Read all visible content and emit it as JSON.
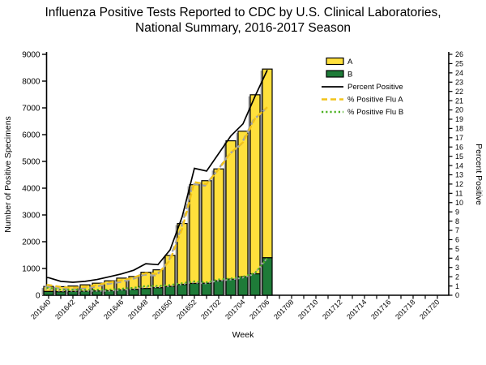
{
  "title": {
    "line1": "Influenza Positive Tests Reported to CDC by U.S. Clinical Laboratories,",
    "line2": "National Summary, 2016-2017 Season"
  },
  "chart_data": {
    "type": "combo",
    "subtype": "stacked-bar-with-lines",
    "title": "Influenza Positive Tests Reported to CDC by U.S. Clinical Laboratories, National Summary, 2016-2017 Season",
    "x_axis": {
      "label": "Week",
      "weeks": [
        "201640",
        "201641",
        "201642",
        "201643",
        "201644",
        "201645",
        "201646",
        "201647",
        "201648",
        "201649",
        "201650",
        "201651",
        "201652",
        "201701",
        "201702",
        "201703",
        "201704",
        "201705",
        "201706",
        "201707",
        "201708",
        "201709",
        "201710",
        "201711",
        "201712",
        "201713",
        "201714",
        "201715",
        "201716",
        "201717",
        "201718",
        "201719",
        "201720"
      ],
      "label_every": 2
    },
    "left_axis": {
      "label": "Number of Positive Specimens",
      "min": 0,
      "max": 9000,
      "tick_step": 1000
    },
    "right_axis": {
      "label": "Percent Positive",
      "min": 0,
      "max": 26,
      "tick_step": 1
    },
    "bars": {
      "weeks": [
        "201640",
        "201641",
        "201642",
        "201643",
        "201644",
        "201645",
        "201646",
        "201647",
        "201648",
        "201649",
        "201650",
        "201651",
        "201652",
        "201701",
        "201702",
        "201703",
        "201704",
        "201705",
        "201706"
      ],
      "flu_a": [
        190,
        190,
        205,
        240,
        290,
        370,
        440,
        480,
        610,
        670,
        1160,
        2280,
        3690,
        3830,
        4180,
        5170,
        5440,
        6690,
        7050
      ],
      "flu_b": [
        140,
        130,
        140,
        150,
        160,
        170,
        200,
        220,
        250,
        280,
        330,
        400,
        440,
        450,
        540,
        600,
        690,
        800,
        1400
      ]
    },
    "lines": {
      "percent_positive": [
        1.9,
        1.5,
        1.4,
        1.5,
        1.7,
        2.0,
        2.3,
        2.7,
        3.4,
        3.3,
        4.9,
        8.5,
        13.7,
        13.4,
        15.3,
        17.2,
        18.5,
        21.5,
        24.3
      ],
      "percent_positive_flu_a": [
        1.1,
        0.9,
        0.8,
        0.9,
        1.1,
        1.4,
        1.6,
        1.9,
        2.4,
        2.3,
        3.8,
        7.2,
        12.2,
        12.0,
        13.6,
        15.4,
        16.5,
        19.1,
        20.3
      ],
      "percent_positive_flu_b": [
        0.8,
        0.6,
        0.6,
        0.6,
        0.6,
        0.6,
        0.7,
        0.8,
        1.0,
        1.0,
        1.1,
        1.3,
        1.5,
        1.4,
        1.7,
        1.8,
        2.0,
        2.4,
        4.0
      ]
    },
    "legend": [
      {
        "label": "A",
        "kind": "swatch",
        "color": "#ffe03c"
      },
      {
        "label": "B",
        "kind": "swatch",
        "color": "#1e7b38"
      },
      {
        "label": "Percent Positive",
        "kind": "line-solid",
        "color": "#000000"
      },
      {
        "label": "% Positive Flu A",
        "kind": "line-dashed",
        "color": "#f2c318"
      },
      {
        "label": "% Positive Flu B",
        "kind": "line-dotted",
        "color": "#4cb122"
      }
    ],
    "colors": {
      "flu_a_bar": "#ffe03c",
      "flu_b_bar": "#1e7b38",
      "percent_positive_line": "#000000",
      "pct_a_line": "#f2c318",
      "pct_b_line": "#4cb122",
      "shadow": "#a3a3a3",
      "bar_outline": "#000000"
    }
  }
}
